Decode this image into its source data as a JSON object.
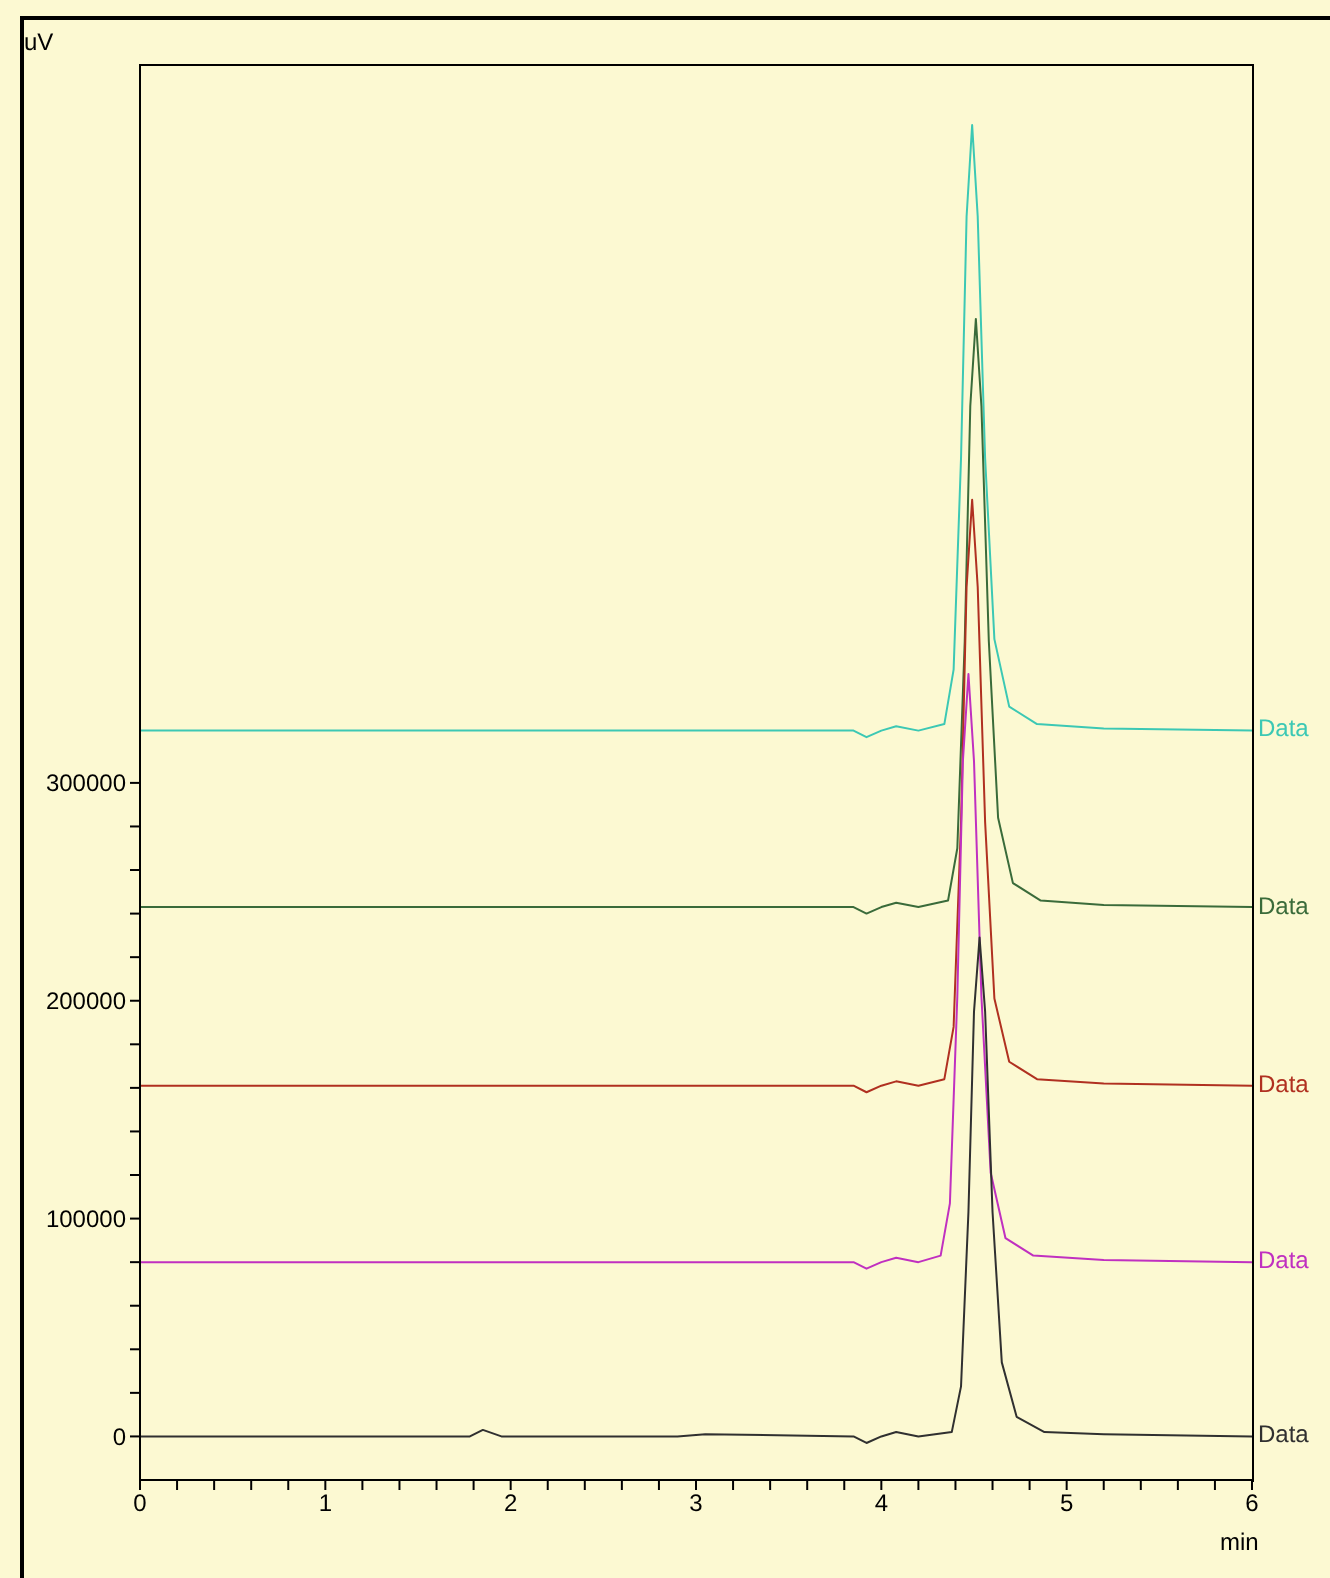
{
  "chart_data": {
    "type": "line",
    "xlabel": "min",
    "ylabel": "uV",
    "xlim": [
      0,
      6
    ],
    "xticks": [
      0,
      {
        "value": 0.2,
        "label": null
      },
      {
        "value": 0.4,
        "label": null
      },
      {
        "value": 0.6,
        "label": null
      },
      {
        "value": 0.8,
        "label": null
      },
      1,
      {
        "value": 1.2,
        "label": null
      },
      {
        "value": 1.4,
        "label": null
      },
      {
        "value": 1.6,
        "label": null
      },
      {
        "value": 1.8,
        "label": null
      },
      2,
      {
        "value": 2.2,
        "label": null
      },
      {
        "value": 2.4,
        "label": null
      },
      {
        "value": 2.6,
        "label": null
      },
      {
        "value": 2.8,
        "label": null
      },
      3,
      {
        "value": 3.2,
        "label": null
      },
      {
        "value": 3.4,
        "label": null
      },
      {
        "value": 3.6,
        "label": null
      },
      {
        "value": 3.8,
        "label": null
      },
      4,
      {
        "value": 4.2,
        "label": null
      },
      {
        "value": 4.4,
        "label": null
      },
      {
        "value": 4.6,
        "label": null
      },
      {
        "value": 4.8,
        "label": null
      },
      5,
      {
        "value": 5.2,
        "label": null
      },
      {
        "value": 5.4,
        "label": null
      },
      {
        "value": 5.6,
        "label": null
      },
      {
        "value": 5.8,
        "label": null
      },
      6
    ],
    "ylim": [
      -20000,
      630000
    ],
    "yticks": [
      0,
      {
        "value": 20000,
        "label": null
      },
      {
        "value": 40000,
        "label": null
      },
      {
        "value": 60000,
        "label": null
      },
      {
        "value": 80000,
        "label": null
      },
      100000,
      {
        "value": 120000,
        "label": null
      },
      {
        "value": 140000,
        "label": null
      },
      {
        "value": 160000,
        "label": null
      },
      {
        "value": 180000,
        "label": null
      },
      200000,
      {
        "value": 220000,
        "label": null
      },
      {
        "value": 240000,
        "label": null
      },
      {
        "value": 260000,
        "label": null
      },
      {
        "value": 280000,
        "label": null
      },
      300000
    ],
    "series": [
      {
        "name": "Data",
        "color": "#3cc8b4",
        "x": [
          0,
          3.85,
          3.92,
          4.0,
          4.08,
          4.2,
          4.34,
          4.39,
          4.43,
          4.46,
          4.49,
          4.52,
          4.56,
          4.61,
          4.69,
          4.84,
          5.2,
          6
        ],
        "values": [
          324000,
          324000,
          321000,
          324000,
          326000,
          324000,
          327000,
          352000,
          449000,
          560000,
          602000,
          560000,
          449000,
          366000,
          335000,
          327000,
          325000,
          324000
        ]
      },
      {
        "name": "Data",
        "color": "#3a6b3a",
        "x": [
          0,
          3.85,
          3.92,
          4.0,
          4.08,
          4.2,
          4.36,
          4.41,
          4.45,
          4.48,
          4.51,
          4.54,
          4.58,
          4.63,
          4.71,
          4.86,
          5.2,
          6
        ],
        "values": [
          243000,
          243000,
          240000,
          243000,
          245000,
          243000,
          246000,
          270000,
          365000,
          473000,
          513000,
          473000,
          365000,
          284000,
          254000,
          246000,
          244000,
          243000
        ]
      },
      {
        "name": "Data",
        "color": "#b03020",
        "x": [
          0,
          3.85,
          3.92,
          4.0,
          4.08,
          4.2,
          4.34,
          4.39,
          4.43,
          4.46,
          4.49,
          4.52,
          4.56,
          4.61,
          4.69,
          4.84,
          5.2,
          6
        ],
        "values": [
          161000,
          161000,
          158000,
          161000,
          163000,
          161000,
          164000,
          188000,
          282000,
          390000,
          430000,
          390000,
          282000,
          201000,
          172000,
          164000,
          162000,
          161000
        ]
      },
      {
        "name": "Data",
        "color": "#c030c0",
        "x": [
          0,
          3.85,
          3.92,
          4.0,
          4.08,
          4.2,
          4.32,
          4.37,
          4.41,
          4.44,
          4.47,
          4.5,
          4.54,
          4.59,
          4.67,
          4.82,
          5.2,
          6
        ],
        "values": [
          80000,
          80000,
          77000,
          80000,
          82000,
          80000,
          83000,
          107000,
          202000,
          310000,
          350000,
          310000,
          202000,
          121000,
          91000,
          83000,
          81000,
          80000
        ]
      },
      {
        "name": "Data",
        "color": "#303030",
        "x": [
          0,
          1.78,
          1.85,
          1.95,
          2.9,
          3.05,
          3.85,
          3.92,
          4.0,
          4.08,
          4.2,
          4.38,
          4.43,
          4.47,
          4.5,
          4.53,
          4.56,
          4.6,
          4.65,
          4.73,
          4.88,
          5.2,
          6
        ],
        "values": [
          0,
          0,
          3000,
          0,
          0,
          1000,
          0,
          -3000,
          0,
          2000,
          0,
          2000,
          23000,
          103000,
          195000,
          229000,
          195000,
          103000,
          34000,
          9000,
          2000,
          1000,
          0
        ]
      }
    ]
  }
}
